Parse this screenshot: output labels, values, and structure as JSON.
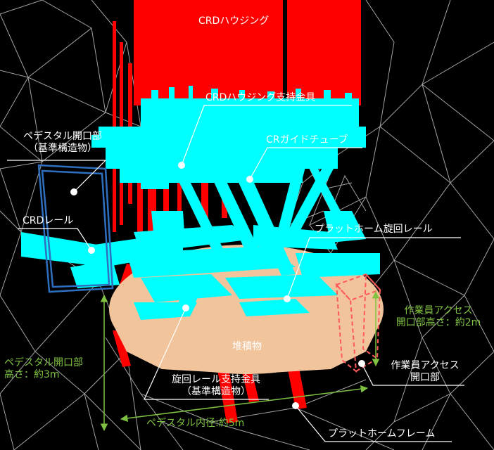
{
  "labels": {
    "crd_housing": "CRDハウジング",
    "crd_housing_support": "CRDハウジング支持金具",
    "pedestal_opening_line1": "ペデスタル開口部",
    "pedestal_opening_line2": "（基準構造物）",
    "cr_guide_tube": "CRガイドチューブ",
    "crd_rail": "CRDレール",
    "platform_rotation_rail": "プラットホーム旋回レール",
    "worker_access_height_line1": "作業員アクセス",
    "worker_access_height_line2": "開口部高さ：約2m",
    "deposit": "堆積物",
    "pedestal_height_line1": "ペデスタル開口部",
    "pedestal_height_line2": "高さ：約3m",
    "rotation_rail_support_line1": "旋回レール支持金具",
    "rotation_rail_support_line2": "（基準構造物）",
    "worker_access_opening_line1": "作業員アクセス",
    "worker_access_opening_line2": "開口部",
    "pedestal_inner_diameter": "ペデスタル内径:約5m",
    "platform_frame": "プラットホームフレーム"
  },
  "colors": {
    "background": "#000000",
    "wireframe": "#bfbfbf",
    "crd_housing": "#ff0000",
    "structure_cyan": "#00ffff",
    "deposit": "#f2c49b",
    "opening_frame": "#2e6fc0",
    "access_frame": "#ff5a5a",
    "dimension": "#7fc241",
    "leader": "#ffffff"
  }
}
